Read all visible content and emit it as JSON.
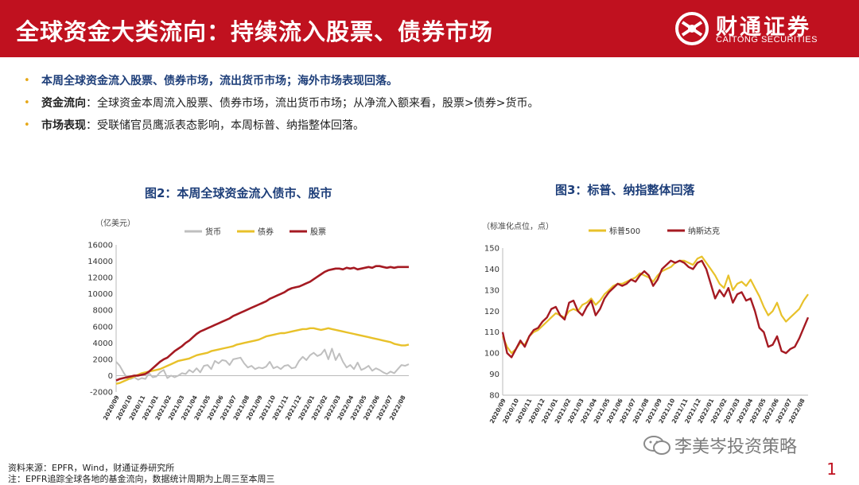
{
  "header": {
    "title": "全球资金大类流向：持续流入股票、债券市场",
    "logo_cn": "财通证券",
    "logo_en": "CAITONG SECURITIES",
    "bg_color": "#c0111f"
  },
  "bullets": [
    {
      "label": "",
      "text": "本周全球资金流入股票、债券市场，流出货币市场；海外市场表现回落。"
    },
    {
      "label": "资金流向",
      "text": "：全球资金本周流入股票、债券市场，流出货币市场；从净流入额来看，股票>债券>货币。"
    },
    {
      "label": "市场表现",
      "text": "：受联储官员鹰派表态影响，本周标普、纳指整体回落。"
    }
  ],
  "chart_data": [
    {
      "type": "line",
      "title": "图2：本周全球资金流入债市、股市",
      "ylabel": "（亿美元）",
      "ylim": [
        -2000,
        16000
      ],
      "yticks": [
        -2000,
        0,
        2000,
        4000,
        6000,
        8000,
        10000,
        12000,
        14000,
        16000
      ],
      "xticks": [
        "2020/09",
        "2020/10",
        "2020/11",
        "2021/01",
        "2021/02",
        "2021/03",
        "2021/04",
        "2021/05",
        "2021/06",
        "2021/07",
        "2021/08",
        "2021/09",
        "2021/10",
        "2021/11",
        "2021/12",
        "2022/01",
        "2022/02",
        "2022/03",
        "2022/04",
        "2022/05",
        "2022/06",
        "2022/07",
        "2022/08"
      ],
      "legend_position": "top",
      "series": [
        {
          "name": "货币",
          "color": "#bfbfbf",
          "values": [
            1700,
            1200,
            400,
            -300,
            -400,
            -200,
            -500,
            -300,
            -400,
            300,
            -200,
            -100,
            400,
            700,
            -300,
            0,
            -200,
            0,
            300,
            200,
            700,
            400,
            900,
            400,
            1200,
            1300,
            800,
            1800,
            1500,
            1900,
            1800,
            1300,
            2000,
            2100,
            2200,
            1500,
            1000,
            1200,
            800,
            1000,
            900,
            1100,
            1700,
            900,
            1100,
            800,
            1200,
            1300,
            900,
            1000,
            1800,
            2300,
            1900,
            2500,
            2800,
            2400,
            2600,
            3200,
            2000,
            3300,
            1900,
            2700,
            1700,
            1000,
            1300,
            800,
            1600,
            700,
            900,
            1200,
            600,
            900,
            700,
            400,
            200,
            500,
            300,
            800,
            1300,
            1200,
            1400
          ]
        },
        {
          "name": "债券",
          "color": "#e8c12a",
          "values": [
            -1000,
            -900,
            -700,
            -500,
            -300,
            -100,
            100,
            300,
            400,
            500,
            600,
            700,
            800,
            1000,
            1200,
            1400,
            1600,
            1800,
            1900,
            2000,
            2100,
            2300,
            2500,
            2600,
            2700,
            2800,
            3000,
            3100,
            3200,
            3300,
            3400,
            3500,
            3600,
            3800,
            3900,
            4000,
            4100,
            4200,
            4300,
            4400,
            4600,
            4800,
            4900,
            5000,
            5100,
            5200,
            5200,
            5300,
            5400,
            5500,
            5600,
            5700,
            5700,
            5800,
            5800,
            5700,
            5600,
            5700,
            5800,
            5700,
            5600,
            5500,
            5400,
            5300,
            5200,
            5100,
            5000,
            4900,
            4800,
            4700,
            4600,
            4500,
            4400,
            4300,
            4200,
            4100,
            3900,
            3800,
            3700,
            3700,
            3800
          ]
        },
        {
          "name": "股票",
          "color": "#a51a22",
          "values": [
            -600,
            -400,
            -300,
            -200,
            -100,
            0,
            0,
            100,
            200,
            500,
            900,
            1300,
            1700,
            2000,
            2200,
            2600,
            3000,
            3300,
            3600,
            4000,
            4300,
            4700,
            5100,
            5400,
            5600,
            5800,
            6000,
            6200,
            6400,
            6600,
            6800,
            7000,
            7300,
            7500,
            7700,
            7900,
            8100,
            8300,
            8500,
            8700,
            8900,
            9100,
            9400,
            9600,
            9800,
            10000,
            10200,
            10500,
            10700,
            10800,
            10900,
            11100,
            11300,
            11500,
            11800,
            12100,
            12400,
            12700,
            12900,
            13000,
            13100,
            13100,
            13000,
            13200,
            13100,
            13200,
            13000,
            13100,
            13200,
            13300,
            13200,
            13400,
            13400,
            13300,
            13200,
            13300,
            13200,
            13300,
            13300,
            13300,
            13300
          ]
        }
      ]
    },
    {
      "type": "line",
      "title": "图3：标普、纳指整体回落",
      "ylabel": "（标准化点位，点）",
      "ylim": [
        80,
        150
      ],
      "yticks": [
        80,
        90,
        100,
        110,
        120,
        130,
        140,
        150
      ],
      "xticks": [
        "2020/09",
        "2020/10",
        "2020/11",
        "2020/12",
        "2021/01",
        "2021/02",
        "2021/03",
        "2021/04",
        "2021/05",
        "2021/06",
        "2021/07",
        "2021/08",
        "2021/09",
        "2021/10",
        "2021/11",
        "2021/12",
        "2022/01",
        "2022/02",
        "2022/03",
        "2022/04",
        "2022/05",
        "2022/06",
        "2022/07",
        "2022/08"
      ],
      "legend_position": "top",
      "series": [
        {
          "name": "标普500",
          "color": "#e8c12a",
          "values": [
            108,
            103,
            100,
            102,
            105,
            104,
            108,
            110,
            111,
            113,
            115,
            117,
            119,
            118,
            117,
            120,
            121,
            120,
            123,
            124,
            126,
            123,
            125,
            128,
            130,
            132,
            133,
            133,
            134,
            135,
            136,
            138,
            137,
            136,
            134,
            137,
            139,
            140,
            141,
            143,
            144,
            144,
            143,
            142,
            145,
            146,
            143,
            140,
            137,
            133,
            131,
            137,
            130,
            133,
            134,
            132,
            135,
            131,
            127,
            122,
            118,
            120,
            124,
            118,
            115,
            117,
            119,
            121,
            125,
            128
          ]
        },
        {
          "name": "纳斯达克",
          "color": "#a51a22",
          "values": [
            110,
            100,
            98,
            102,
            106,
            103,
            108,
            111,
            112,
            115,
            117,
            121,
            122,
            118,
            116,
            124,
            125,
            120,
            118,
            122,
            125,
            118,
            121,
            126,
            129,
            131,
            133,
            132,
            133,
            135,
            134,
            137,
            139,
            137,
            132,
            135,
            140,
            142,
            144,
            143,
            144,
            143,
            141,
            140,
            143,
            144,
            140,
            133,
            126,
            130,
            127,
            131,
            124,
            128,
            129,
            125,
            126,
            120,
            112,
            110,
            103,
            104,
            108,
            101,
            100,
            102,
            103,
            107,
            112,
            117
          ]
        }
      ]
    }
  ],
  "footer": {
    "source": "资料来源：EPFR，Wind，财通证券研究所",
    "note": "注：EPFR追踪全球各地的基金流向，数据统计周期为上周三至本周三"
  },
  "watermark": "李美岑投资策略",
  "page_number": "1"
}
